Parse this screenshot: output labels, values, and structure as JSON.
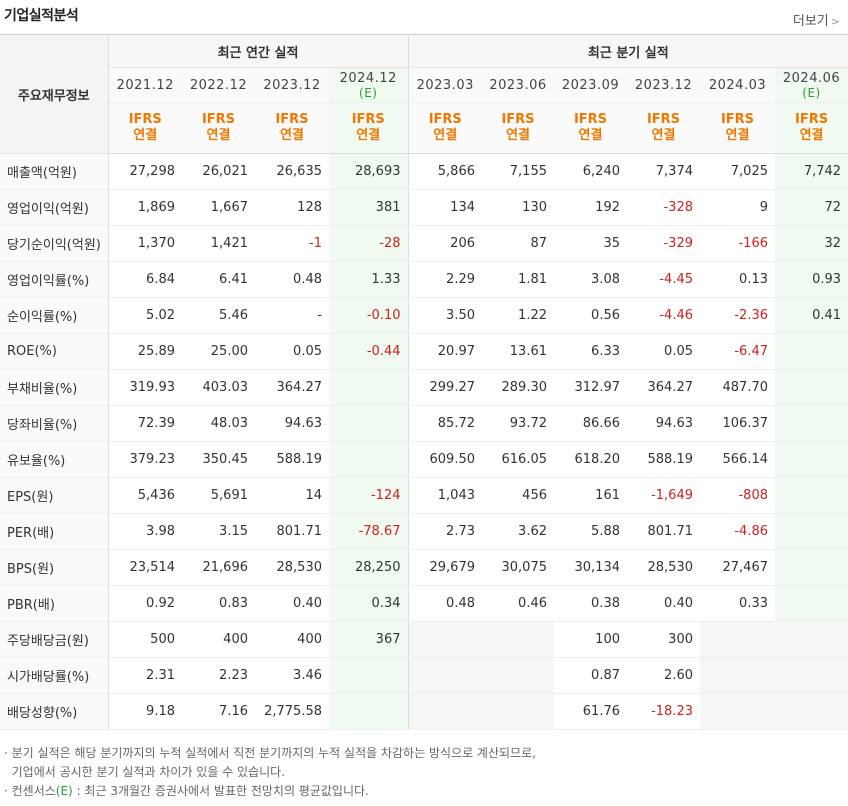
{
  "title": "기업실적분석",
  "more_label": "더보기",
  "header": {
    "corner": "주요재무정보",
    "annual_group": "최근 연간 실적",
    "quarter_group": "최근 분기 실적",
    "periods": [
      {
        "date": "2021.12",
        "est": "",
        "std1": "IFRS",
        "std2": "연결"
      },
      {
        "date": "2022.12",
        "est": "",
        "std1": "IFRS",
        "std2": "연결"
      },
      {
        "date": "2023.12",
        "est": "",
        "std1": "IFRS",
        "std2": "연결"
      },
      {
        "date": "2024.12",
        "est": "(E)",
        "std1": "IFRS",
        "std2": "연결"
      },
      {
        "date": "2023.03",
        "est": "",
        "std1": "IFRS",
        "std2": "연결"
      },
      {
        "date": "2023.06",
        "est": "",
        "std1": "IFRS",
        "std2": "연결"
      },
      {
        "date": "2023.09",
        "est": "",
        "std1": "IFRS",
        "std2": "연결"
      },
      {
        "date": "2023.12",
        "est": "",
        "std1": "IFRS",
        "std2": "연결"
      },
      {
        "date": "2024.03",
        "est": "",
        "std1": "IFRS",
        "std2": "연결"
      },
      {
        "date": "2024.06",
        "est": "(E)",
        "std1": "IFRS",
        "std2": "연결"
      }
    ]
  },
  "rows": [
    {
      "label": "매출액(억원)",
      "values": [
        "27,298",
        "26,021",
        "26,635",
        "28,693",
        "5,866",
        "7,155",
        "6,240",
        "7,374",
        "7,025",
        "7,742"
      ]
    },
    {
      "label": "영업이익(억원)",
      "values": [
        "1,869",
        "1,667",
        "128",
        "381",
        "134",
        "130",
        "192",
        "-328",
        "9",
        "72"
      ]
    },
    {
      "label": "당기순이익(억원)",
      "values": [
        "1,370",
        "1,421",
        "-1",
        "-28",
        "206",
        "87",
        "35",
        "-329",
        "-166",
        "32"
      ]
    },
    {
      "label": "영업이익률(%)",
      "values": [
        "6.84",
        "6.41",
        "0.48",
        "1.33",
        "2.29",
        "1.81",
        "3.08",
        "-4.45",
        "0.13",
        "0.93"
      ]
    },
    {
      "label": "순이익률(%)",
      "values": [
        "5.02",
        "5.46",
        "-",
        "-0.10",
        "3.50",
        "1.22",
        "0.56",
        "-4.46",
        "-2.36",
        "0.41"
      ]
    },
    {
      "label": "ROE(%)",
      "values": [
        "25.89",
        "25.00",
        "0.05",
        "-0.44",
        "20.97",
        "13.61",
        "6.33",
        "0.05",
        "-6.47",
        ""
      ]
    },
    {
      "label": "부채비율(%)",
      "values": [
        "319.93",
        "403.03",
        "364.27",
        "",
        "299.27",
        "289.30",
        "312.97",
        "364.27",
        "487.70",
        ""
      ]
    },
    {
      "label": "당좌비율(%)",
      "values": [
        "72.39",
        "48.03",
        "94.63",
        "",
        "85.72",
        "93.72",
        "86.66",
        "94.63",
        "106.37",
        ""
      ]
    },
    {
      "label": "유보율(%)",
      "values": [
        "379.23",
        "350.45",
        "588.19",
        "",
        "609.50",
        "616.05",
        "618.20",
        "588.19",
        "566.14",
        ""
      ]
    },
    {
      "label": "EPS(원)",
      "values": [
        "5,436",
        "5,691",
        "14",
        "-124",
        "1,043",
        "456",
        "161",
        "-1,649",
        "-808",
        ""
      ]
    },
    {
      "label": "PER(배)",
      "values": [
        "3.98",
        "3.15",
        "801.71",
        "-78.67",
        "2.73",
        "3.62",
        "5.88",
        "801.71",
        "-4.86",
        ""
      ]
    },
    {
      "label": "BPS(원)",
      "values": [
        "23,514",
        "21,696",
        "28,530",
        "28,250",
        "29,679",
        "30,075",
        "30,134",
        "28,530",
        "27,467",
        ""
      ]
    },
    {
      "label": "PBR(배)",
      "values": [
        "0.92",
        "0.83",
        "0.40",
        "0.34",
        "0.48",
        "0.46",
        "0.38",
        "0.40",
        "0.33",
        ""
      ]
    },
    {
      "label": "주당배당금(원)",
      "values": [
        "500",
        "400",
        "400",
        "367",
        "",
        "",
        "100",
        "300",
        "",
        ""
      ]
    },
    {
      "label": "시가배당률(%)",
      "values": [
        "2.31",
        "2.23",
        "3.46",
        "",
        "",
        "",
        "0.87",
        "2.60",
        "",
        ""
      ]
    },
    {
      "label": "배당성향(%)",
      "values": [
        "9.18",
        "7.16",
        "2,775.58",
        "",
        "",
        "",
        "61.76",
        "-18.23",
        "",
        ""
      ]
    }
  ],
  "notes": {
    "line1": "· 분기 실적은 해당 분기까지의 누적 실적에서 직전 분기까지의 누적 실적을 차감하는 방식으로 계산되므로,",
    "line2": "  기업에서 공시한 분기 실적과 차이가 있을 수 있습니다.",
    "line3_pre": "· 컨센서스",
    "line3_mark": "(E)",
    "line3_post": " : 최근 3개월간 증권사에서 발표한 전망치의 평균값입니다."
  }
}
